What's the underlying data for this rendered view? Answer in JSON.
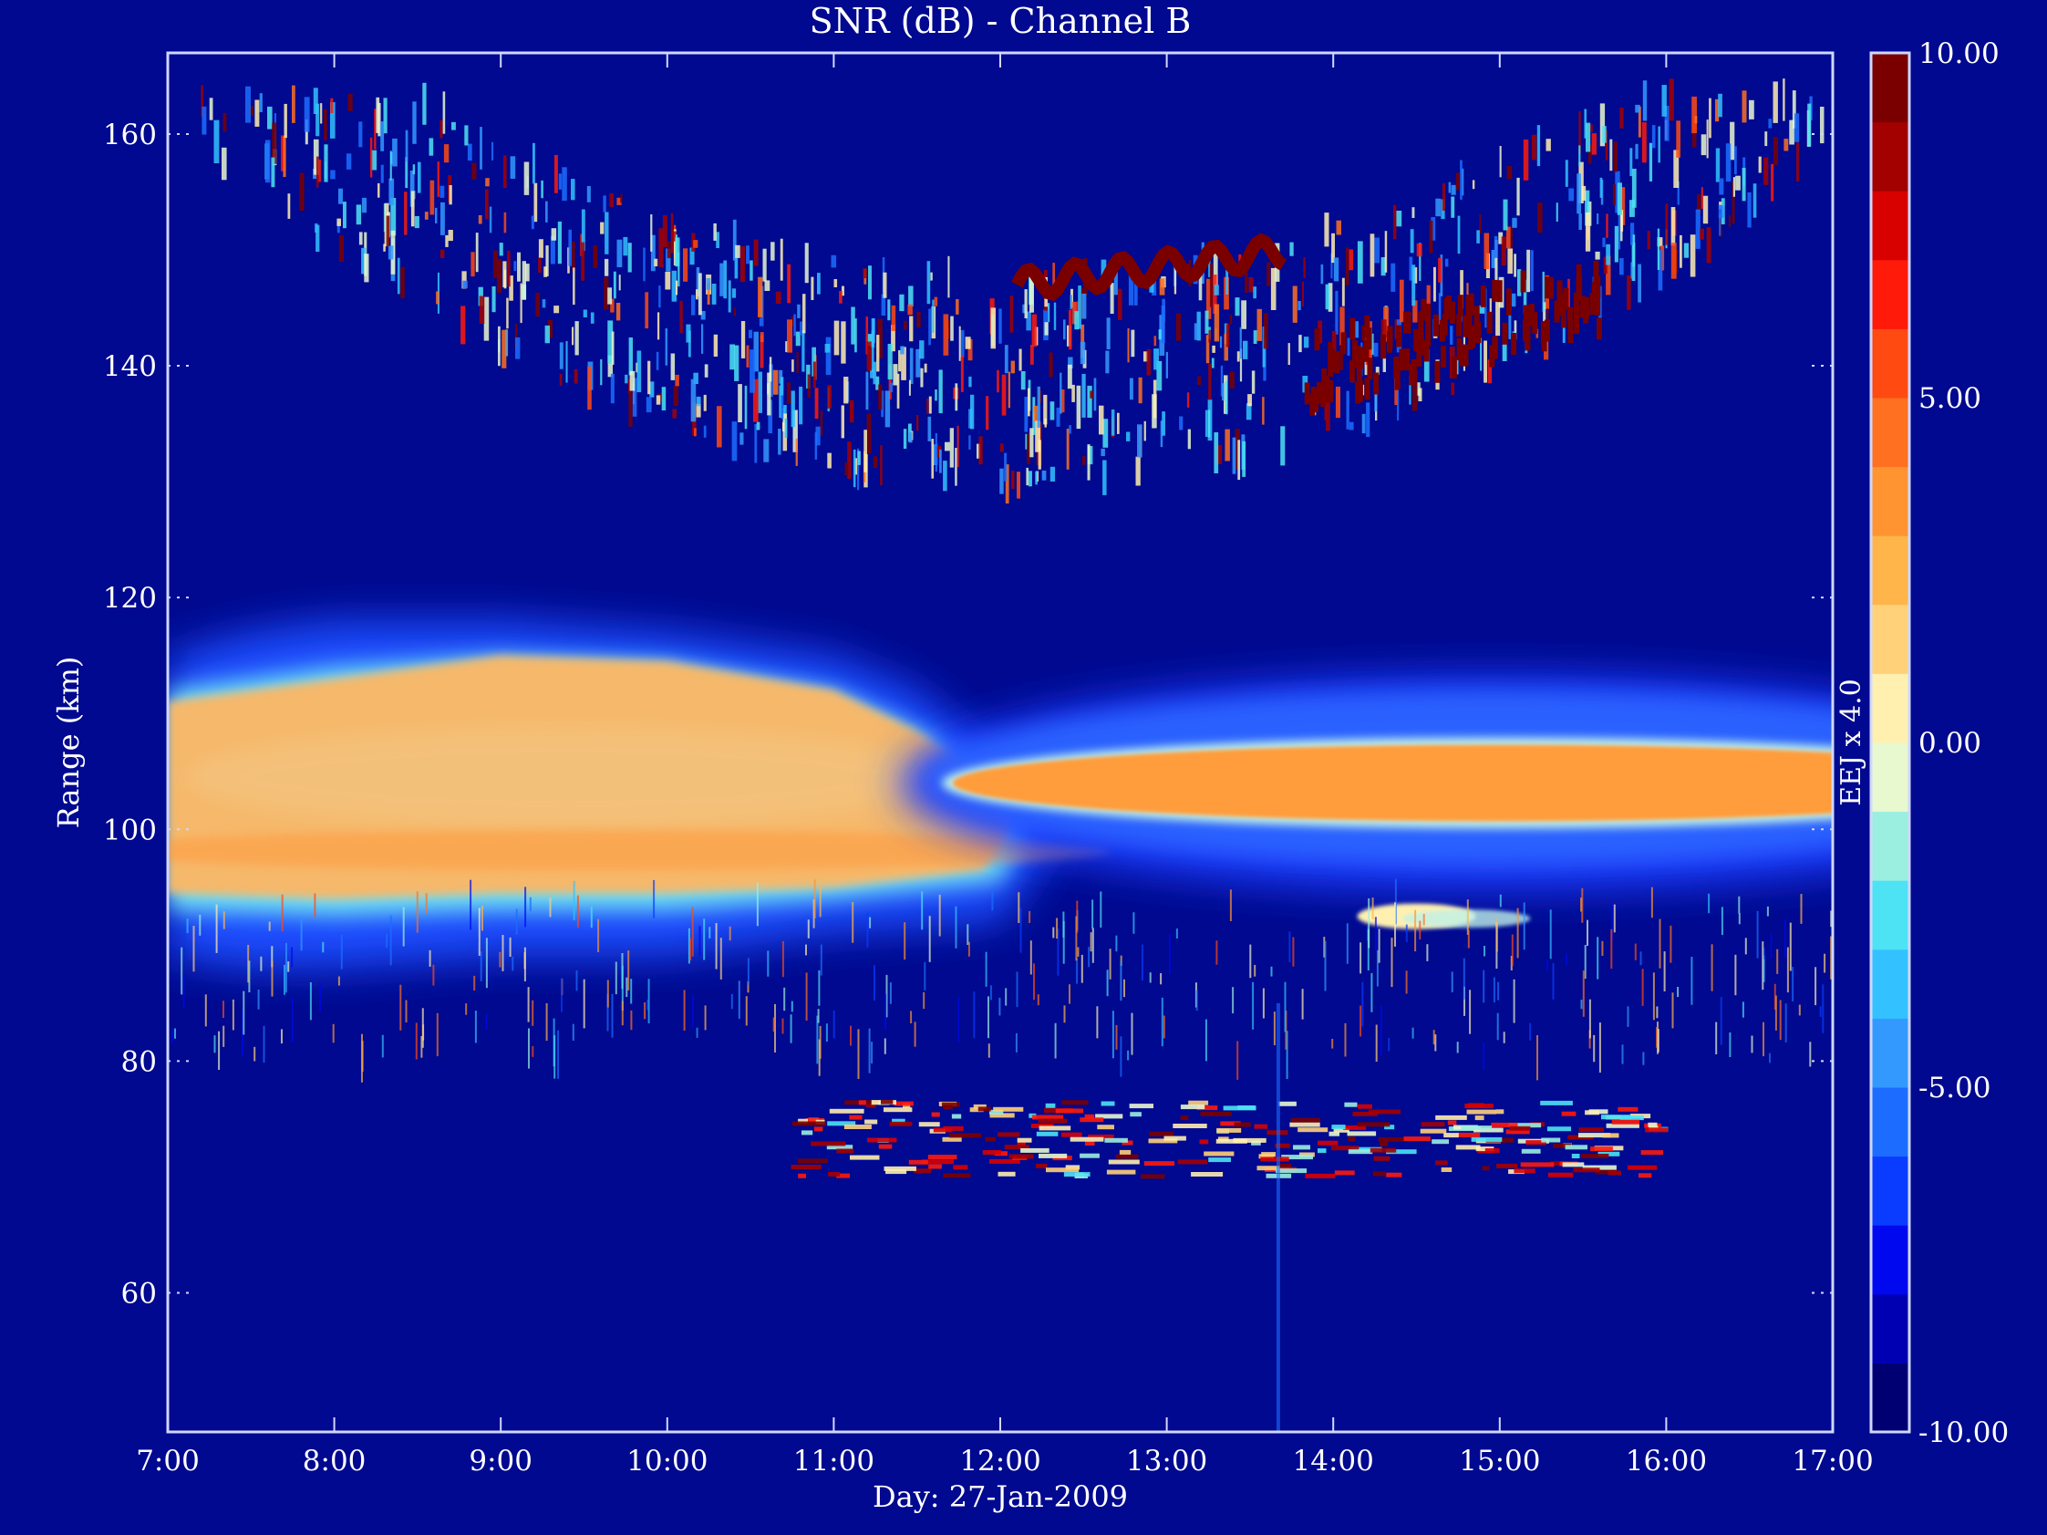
{
  "chart_data": {
    "type": "heatmap",
    "title": "SNR (dB) - Channel B",
    "xlabel": "Day: 27-Jan-2009",
    "ylabel": "Range (km)",
    "xlim": [
      7,
      17
    ],
    "ylim": [
      48,
      167
    ],
    "x_ticks": [
      {
        "value": 7,
        "label": "7:00"
      },
      {
        "value": 8,
        "label": "8:00"
      },
      {
        "value": 9,
        "label": "9:00"
      },
      {
        "value": 10,
        "label": "10:00"
      },
      {
        "value": 11,
        "label": "11:00"
      },
      {
        "value": 12,
        "label": "12:00"
      },
      {
        "value": 13,
        "label": "13:00"
      },
      {
        "value": 14,
        "label": "14:00"
      },
      {
        "value": 15,
        "label": "15:00"
      },
      {
        "value": 16,
        "label": "16:00"
      },
      {
        "value": 17,
        "label": "17:00"
      }
    ],
    "y_ticks": [
      {
        "value": 60,
        "label": "60"
      },
      {
        "value": 80,
        "label": "80"
      },
      {
        "value": 100,
        "label": "100"
      },
      {
        "value": 120,
        "label": "120"
      },
      {
        "value": 140,
        "label": "140"
      },
      {
        "value": 160,
        "label": "160"
      }
    ],
    "colorbar": {
      "label": "EEJ x 4.0",
      "range": [
        -10,
        10
      ],
      "ticks": [
        {
          "value": 10,
          "label": "10.00"
        },
        {
          "value": 5,
          "label": "5.00"
        },
        {
          "value": 0,
          "label": "0.00"
        },
        {
          "value": -5,
          "label": "-5.00"
        },
        {
          "value": -10,
          "label": "-10.00"
        }
      ],
      "colors": [
        "#000073",
        "#0000b3",
        "#0008f0",
        "#0a3cff",
        "#1c6dff",
        "#3399ff",
        "#33c2ff",
        "#4de3f5",
        "#9aefe0",
        "#e8f8cf",
        "#fff0b0",
        "#ffd27a",
        "#ffb54a",
        "#ff9430",
        "#ff7020",
        "#ff4a12",
        "#ff1a0a",
        "#d90000",
        "#a30000",
        "#7a0000"
      ]
    },
    "background_color": "#00098f",
    "regions": [
      {
        "name": "Upper echo band (150 km echoes)",
        "x_range": [
          7.2,
          17
        ],
        "y_range": [
          128,
          162
        ],
        "snr_db": [
          0,
          10
        ]
      },
      {
        "name": "Morning E-region echo",
        "x_range": [
          7,
          12.4
        ],
        "y_range": [
          90,
          122
        ],
        "snr_db": [
          2,
          4
        ]
      },
      {
        "name": "Afternoon E-region echo",
        "x_range": [
          13.1,
          17
        ],
        "y_range": [
          98,
          110
        ],
        "snr_db": [
          3,
          5
        ]
      },
      {
        "name": "Lower echo layer",
        "x_range": [
          10.7,
          16
        ],
        "y_range": [
          70,
          78
        ],
        "snr_db": [
          0,
          10
        ]
      }
    ]
  }
}
